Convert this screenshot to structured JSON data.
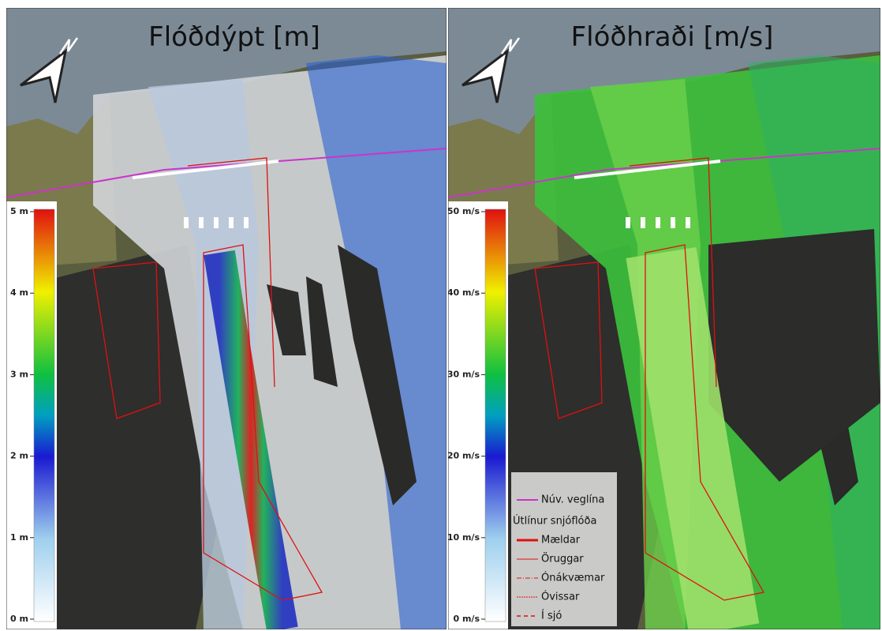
{
  "panels": [
    {
      "title": "Flóðdýpt [m]",
      "colorbar": [
        "5 m",
        "4 m",
        "3 m",
        "2 m",
        "1 m",
        "0 m"
      ]
    },
    {
      "title": "Flóðhraði [m/s]",
      "colorbar": [
        "50 m/s",
        "40 m/s",
        "30 m/s",
        "20 m/s",
        "10 m/s",
        "0 m/s"
      ]
    }
  ],
  "legend": {
    "road": "Núv. veglína",
    "heading": "Útlínur snjóflóða",
    "items": [
      "Mældar",
      "Öruggar",
      "Ónákvæmar",
      "Óvissar",
      "Í sjó"
    ]
  }
}
